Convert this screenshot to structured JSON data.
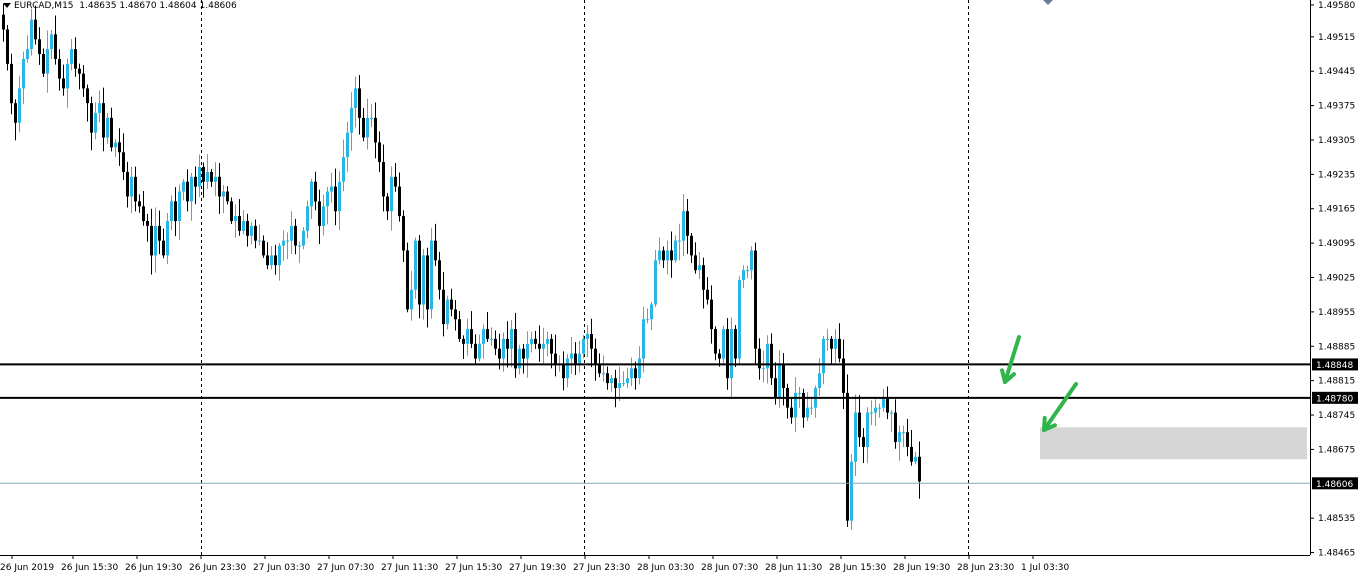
{
  "header": {
    "symbol": "EURCAD,M15",
    "ohlc": "1.48635 1.48670 1.48604 1.48606"
  },
  "colors": {
    "background": "#ffffff",
    "bull_candle": "#29b6e6",
    "bear_candle": "#000000",
    "grid_sep": "#000000",
    "level_line": "#000000",
    "current_price_line": "#7fa7b5",
    "zone_fill": "#d6d6d6",
    "arrow": "#2fb54a"
  },
  "chart_data": {
    "type": "candlestick",
    "ylim": [
      1.4846,
      1.4959
    ],
    "price_ticks": [
      "1.49580",
      "1.49515",
      "1.49445",
      "1.49375",
      "1.49305",
      "1.49235",
      "1.49165",
      "1.49095",
      "1.49025",
      "1.48955",
      "1.48885",
      "1.48815",
      "1.48745",
      "1.48675",
      "1.48535",
      "1.48465"
    ],
    "time_ticks": [
      "26 Jun 2019",
      "26 Jun 15:30",
      "26 Jun 19:30",
      "26 Jun 23:30",
      "27 Jun 03:30",
      "27 Jun 07:30",
      "27 Jun 11:30",
      "27 Jun 15:30",
      "27 Jun 19:30",
      "27 Jun 23:30",
      "28 Jun 03:30",
      "28 Jun 07:30",
      "28 Jun 11:30",
      "28 Jun 15:30",
      "28 Jun 19:30",
      "28 Jun 23:30",
      "1 Jul 03:30"
    ],
    "day_separators": [
      "26 Jun 23:30",
      "27 Jun 23:30",
      "28 Jun 23:30"
    ],
    "horizontal_levels": [
      {
        "price": 1.48848,
        "label": "1.48848"
      },
      {
        "price": 1.4878,
        "label": "1.48780"
      }
    ],
    "current_price": {
      "price": 1.48606,
      "label": "1.48606"
    },
    "zone": {
      "top": 1.4872,
      "bottom": 1.48655
    },
    "annotations": [
      {
        "type": "arrow",
        "color": "green",
        "points_to": 1.48815
      },
      {
        "type": "arrow",
        "color": "green",
        "points_to": 1.4872
      }
    ],
    "closes": [
      1.4953,
      1.4946,
      1.4938,
      1.4934,
      1.4941,
      1.4947,
      1.4949,
      1.4955,
      1.4951,
      1.4948,
      1.4944,
      1.4949,
      1.4952,
      1.4947,
      1.4943,
      1.4941,
      1.4946,
      1.4949,
      1.4945,
      1.4944,
      1.4941,
      1.4938,
      1.4932,
      1.4936,
      1.4938,
      1.4931,
      1.4935,
      1.4929,
      1.493,
      1.4928,
      1.4924,
      1.4919,
      1.4923,
      1.4918,
      1.4917,
      1.4914,
      1.4913,
      1.4907,
      1.4913,
      1.491,
      1.4907,
      1.4914,
      1.4918,
      1.4914,
      1.492,
      1.4922,
      1.4918,
      1.4923,
      1.4921,
      1.4925,
      1.4922,
      1.4924,
      1.4922,
      1.4923,
      1.4919,
      1.492,
      1.4918,
      1.4914,
      1.4915,
      1.4912,
      1.4914,
      1.4911,
      1.4913,
      1.491,
      1.491,
      1.4907,
      1.4905,
      1.4907,
      1.4905,
      1.4909,
      1.491,
      1.491,
      1.4913,
      1.4909,
      1.4909,
      1.4912,
      1.4917,
      1.4922,
      1.4918,
      1.4913,
      1.4917,
      1.492,
      1.4921,
      1.4916,
      1.4922,
      1.4927,
      1.4932,
      1.4937,
      1.4941,
      1.4935,
      1.4931,
      1.4935,
      1.4935,
      1.493,
      1.4926,
      1.4919,
      1.4916,
      1.4923,
      1.4921,
      1.4915,
      1.4908,
      1.4896,
      1.49,
      1.491,
      1.4897,
      1.4907,
      1.4896,
      1.491,
      1.4906,
      1.49,
      1.4893,
      1.4898,
      1.4896,
      1.4894,
      1.489,
      1.4889,
      1.4892,
      1.4889,
      1.4886,
      1.4889,
      1.4892,
      1.489,
      1.489,
      1.4888,
      1.4886,
      1.489,
      1.4888,
      1.4892,
      1.4884,
      1.4888,
      1.4886,
      1.4889,
      1.489,
      1.4889,
      1.4888,
      1.4889,
      1.489,
      1.4887,
      1.4885,
      1.4885,
      1.4882,
      1.4886,
      1.4887,
      1.4885,
      1.4887,
      1.489,
      1.4891,
      1.4888,
      1.4885,
      1.4883,
      1.4883,
      1.4881,
      1.4882,
      1.488,
      1.4881,
      1.4881,
      1.4882,
      1.4884,
      1.4882,
      1.4886,
      1.4894,
      1.4894,
      1.4897,
      1.4906,
      1.4908,
      1.4906,
      1.4908,
      1.4906,
      1.491,
      1.491,
      1.4916,
      1.4911,
      1.4907,
      1.4904,
      1.4905,
      1.49,
      1.4898,
      1.4892,
      1.4887,
      1.4886,
      1.4892,
      1.4882,
      1.4892,
      1.4886,
      1.4902,
      1.4904,
      1.4904,
      1.4908,
      1.4888,
      1.4884,
      1.4884,
      1.4889,
      1.4882,
      1.4878,
      1.4885,
      1.488,
      1.4876,
      1.4874,
      1.4879,
      1.4879,
      1.4874,
      1.4876,
      1.4876,
      1.488,
      1.4883,
      1.489,
      1.489,
      1.4888,
      1.489,
      1.4886,
      1.4879,
      1.4853,
      1.4865,
      1.4875,
      1.487,
      1.4868,
      1.4875,
      1.4875,
      1.4876,
      1.4876,
      1.4878,
      1.4875,
      1.4875,
      1.4869,
      1.4871,
      1.4871,
      1.4868,
      1.4865,
      1.4866,
      1.4861
    ]
  }
}
